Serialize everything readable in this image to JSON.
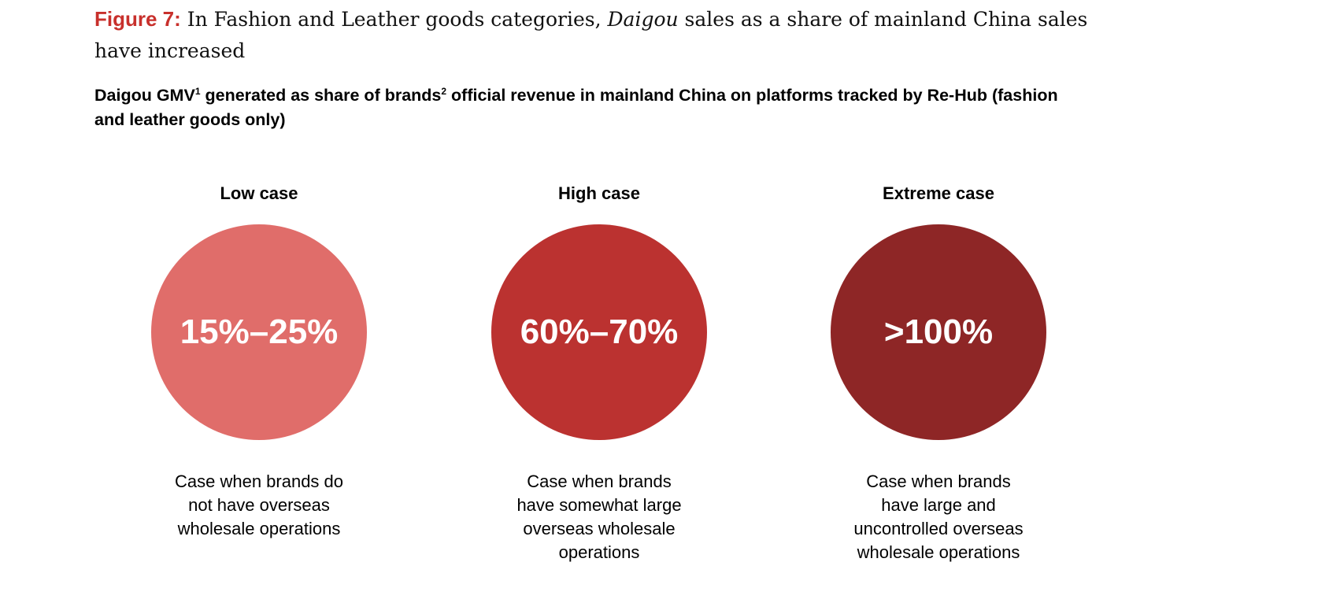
{
  "title": {
    "figure_label": "Figure 7:",
    "text_before": " In Fashion and Leather goods categories, ",
    "italic": "Daigou",
    "text_after": " sales as a share of mainland China sales have increased"
  },
  "subtitle": {
    "part1": "Daigou GMV",
    "sup1": "1",
    "part2": " generated as share of brands",
    "sup2": "2",
    "part3": " official revenue in mainland China on platforms tracked by Re-Hub (fashion and leather goods only)"
  },
  "cases": [
    {
      "label": "Low case",
      "value": "15%–25%",
      "color": "#e06d6a",
      "description": "Case when brands do not have overseas wholesale operations"
    },
    {
      "label": "High case",
      "value": "60%–70%",
      "color": "#bb3230",
      "description": "Case when brands have somewhat large overseas wholesale operations"
    },
    {
      "label": "Extreme case",
      "value": ">100%",
      "color": "#8e2626",
      "description": "Case when brands have large and uncontrolled overseas wholesale operations"
    }
  ]
}
